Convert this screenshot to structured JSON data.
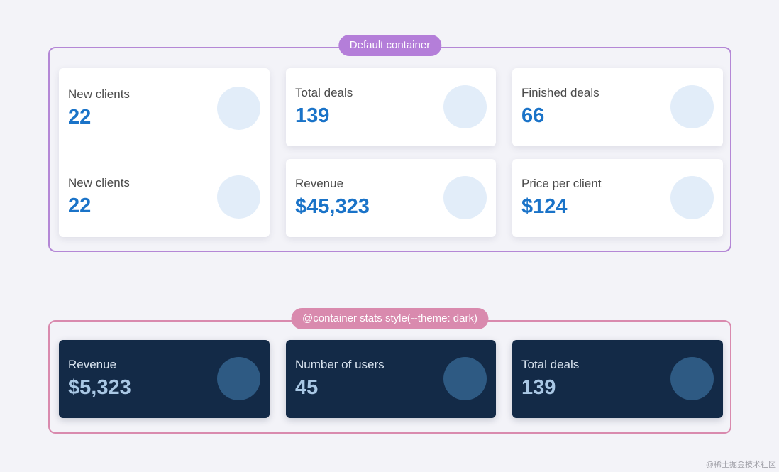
{
  "default_container": {
    "badge": "Default container",
    "cards": [
      {
        "stats": [
          {
            "label": "New clients",
            "value": "22"
          },
          {
            "label": "New clients",
            "value": "22"
          }
        ]
      },
      {
        "label": "Total deals",
        "value": "139"
      },
      {
        "label": "Finished deals",
        "value": "66"
      },
      {
        "label": "Revenue",
        "value": "$45,323"
      },
      {
        "label": "Price per client",
        "value": "$124"
      }
    ]
  },
  "dark_container": {
    "badge": "@container stats style(--theme: dark)",
    "cards": [
      {
        "label": "Revenue",
        "value": "$5,323"
      },
      {
        "label": "Number of users",
        "value": "45"
      },
      {
        "label": "Total deals",
        "value": "139"
      }
    ]
  },
  "colors": {
    "default_border": "#b487d6",
    "dark_border": "#d98aae",
    "value_blue": "#1a73c8",
    "dark_card": "#132a47"
  },
  "watermark": "@稀土掘金技术社区"
}
